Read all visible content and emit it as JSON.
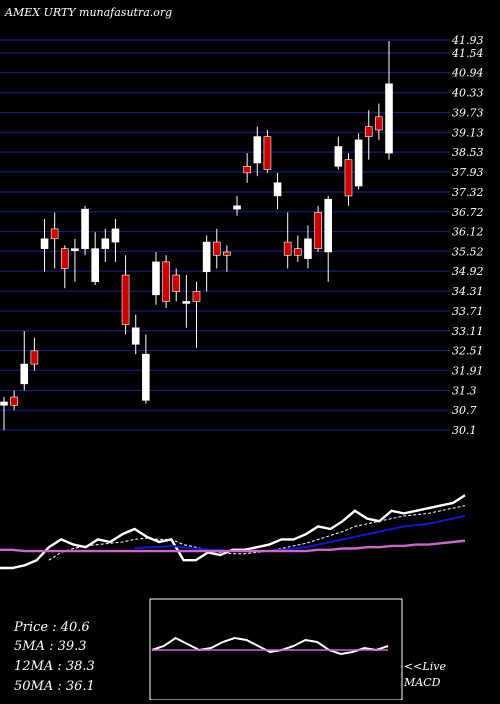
{
  "header": {
    "title": "AMEX  URTY munafasutra.org"
  },
  "colors": {
    "background": "#000000",
    "grid": "#1a1a7a",
    "up": "#ffffff",
    "down": "#cc0000",
    "price_line": "#ffffff",
    "ma5": "#ffffff",
    "ma12": "#1515d0",
    "ma50": "#cc66cc",
    "macd_box": "#ffffff",
    "macd_signal": "#cc66cc"
  },
  "stats": {
    "price": "Price   : 40.6",
    "ma5": "5MA : 39.3",
    "ma12": "12MA : 38.3",
    "ma50": "50MA : 36.1"
  },
  "macd_label": {
    "line1": "<<Live",
    "line2": "MACD"
  },
  "chart_data": [
    {
      "type": "candlestick",
      "title": "AMEX  URTY munafasutra.org",
      "ylim": [
        30.1,
        41.93
      ],
      "y_ticks": [
        "41.93",
        "41.54",
        "40.94",
        "40.33",
        "39.73",
        "39.13",
        "38.53",
        "37.93",
        "37.32",
        "36.72",
        "36.12",
        "35.52",
        "34.92",
        "34.31",
        "33.71",
        "33.11",
        "32.51",
        "31.91",
        "31.3",
        "30.7",
        "30.1"
      ],
      "y_tick_values": [
        41.93,
        41.54,
        40.94,
        40.33,
        39.73,
        39.13,
        38.53,
        37.93,
        37.32,
        36.72,
        36.12,
        35.52,
        34.92,
        34.31,
        33.71,
        33.11,
        32.51,
        31.91,
        31.3,
        30.7,
        30.1
      ],
      "grid": true,
      "candles": [
        {
          "o": 30.95,
          "h": 31.1,
          "l": 30.1,
          "c": 30.85,
          "dir": "up"
        },
        {
          "o": 31.1,
          "h": 31.3,
          "l": 30.7,
          "c": 30.85,
          "dir": "down"
        },
        {
          "o": 31.5,
          "h": 33.1,
          "l": 31.3,
          "c": 32.1,
          "dir": "up"
        },
        {
          "o": 32.5,
          "h": 32.9,
          "l": 31.9,
          "c": 32.1,
          "dir": "down"
        },
        {
          "o": 35.9,
          "h": 36.5,
          "l": 34.9,
          "c": 35.6,
          "dir": "up"
        },
        {
          "o": 36.2,
          "h": 36.7,
          "l": 35.0,
          "c": 35.9,
          "dir": "down"
        },
        {
          "o": 35.6,
          "h": 35.7,
          "l": 34.4,
          "c": 35.0,
          "dir": "down"
        },
        {
          "o": 35.6,
          "h": 35.9,
          "l": 34.6,
          "c": 35.6,
          "dir": "up"
        },
        {
          "o": 36.8,
          "h": 36.9,
          "l": 35.4,
          "c": 35.6,
          "dir": "up"
        },
        {
          "o": 35.6,
          "h": 36.1,
          "l": 34.5,
          "c": 34.6,
          "dir": "up"
        },
        {
          "o": 35.9,
          "h": 36.2,
          "l": 35.2,
          "c": 35.6,
          "dir": "up"
        },
        {
          "o": 36.2,
          "h": 36.5,
          "l": 35.2,
          "c": 35.8,
          "dir": "up"
        },
        {
          "o": 34.8,
          "h": 35.4,
          "l": 33.0,
          "c": 33.3,
          "dir": "down"
        },
        {
          "o": 33.2,
          "h": 33.6,
          "l": 32.4,
          "c": 32.7,
          "dir": "up"
        },
        {
          "o": 32.4,
          "h": 33.0,
          "l": 30.9,
          "c": 31.0,
          "dir": "up"
        },
        {
          "o": 35.2,
          "h": 35.5,
          "l": 33.9,
          "c": 34.2,
          "dir": "up"
        },
        {
          "o": 35.2,
          "h": 35.4,
          "l": 33.8,
          "c": 34.0,
          "dir": "down"
        },
        {
          "o": 34.8,
          "h": 35.0,
          "l": 34.0,
          "c": 34.3,
          "dir": "down"
        },
        {
          "o": 34.0,
          "h": 34.8,
          "l": 33.2,
          "c": 34.0,
          "dir": "up"
        },
        {
          "o": 34.3,
          "h": 34.6,
          "l": 32.6,
          "c": 34.0,
          "dir": "down"
        },
        {
          "o": 35.8,
          "h": 36.0,
          "l": 34.3,
          "c": 34.9,
          "dir": "up"
        },
        {
          "o": 35.8,
          "h": 36.2,
          "l": 35.0,
          "c": 35.4,
          "dir": "down"
        },
        {
          "o": 35.5,
          "h": 35.7,
          "l": 34.9,
          "c": 35.4,
          "dir": "down"
        },
        {
          "o": 36.9,
          "h": 37.2,
          "l": 36.6,
          "c": 36.8,
          "dir": "up"
        },
        {
          "o": 38.1,
          "h": 38.5,
          "l": 37.6,
          "c": 37.9,
          "dir": "down"
        },
        {
          "o": 39.0,
          "h": 39.3,
          "l": 37.8,
          "c": 38.2,
          "dir": "up"
        },
        {
          "o": 38.0,
          "h": 39.2,
          "l": 37.9,
          "c": 39.0,
          "dir": "down"
        },
        {
          "o": 37.6,
          "h": 37.9,
          "l": 36.8,
          "c": 37.2,
          "dir": "up"
        },
        {
          "o": 35.8,
          "h": 36.7,
          "l": 35.0,
          "c": 35.4,
          "dir": "down"
        },
        {
          "o": 35.6,
          "h": 36.0,
          "l": 35.2,
          "c": 35.4,
          "dir": "down"
        },
        {
          "o": 35.9,
          "h": 36.3,
          "l": 35.0,
          "c": 35.3,
          "dir": "up"
        },
        {
          "o": 35.6,
          "h": 36.9,
          "l": 35.5,
          "c": 36.7,
          "dir": "down"
        },
        {
          "o": 37.1,
          "h": 37.2,
          "l": 34.6,
          "c": 35.5,
          "dir": "up"
        },
        {
          "o": 38.7,
          "h": 39.0,
          "l": 38.0,
          "c": 38.1,
          "dir": "up"
        },
        {
          "o": 37.2,
          "h": 38.5,
          "l": 36.9,
          "c": 38.3,
          "dir": "down"
        },
        {
          "o": 37.5,
          "h": 39.1,
          "l": 37.4,
          "c": 38.9,
          "dir": "up"
        },
        {
          "o": 39.0,
          "h": 39.8,
          "l": 38.3,
          "c": 39.3,
          "dir": "down"
        },
        {
          "o": 39.2,
          "h": 40.0,
          "l": 38.9,
          "c": 39.6,
          "dir": "down"
        },
        {
          "o": 40.6,
          "h": 41.9,
          "l": 38.3,
          "c": 38.5,
          "dir": "up"
        }
      ]
    },
    {
      "type": "line",
      "series": [
        {
          "name": "Price",
          "values": [
            40,
            40,
            42,
            46,
            56,
            62,
            58,
            56,
            62,
            60,
            66,
            70,
            64,
            60,
            62,
            46,
            46,
            52,
            50,
            54,
            54,
            56,
            58,
            62,
            62,
            66,
            72,
            70,
            76,
            84,
            78,
            76,
            84,
            82,
            84,
            86,
            88,
            90,
            96
          ]
        },
        {
          "name": "5MA",
          "values": [
            null,
            null,
            null,
            null,
            46,
            52,
            55,
            57,
            58,
            59,
            60,
            62,
            63,
            62,
            62,
            58,
            56,
            54,
            52,
            51,
            51,
            52,
            53,
            55,
            57,
            59,
            62,
            65,
            68,
            72,
            74,
            76,
            78,
            80,
            81,
            82,
            84,
            86,
            88
          ]
        },
        {
          "name": "12MA",
          "values": [
            null,
            null,
            null,
            null,
            null,
            null,
            null,
            null,
            null,
            null,
            null,
            55,
            56,
            56,
            57,
            56,
            55,
            54,
            54,
            53,
            53,
            53,
            53,
            54,
            55,
            56,
            58,
            60,
            62,
            64,
            66,
            68,
            70,
            72,
            73,
            74,
            76,
            78,
            80
          ]
        },
        {
          "name": "50MA",
          "values": [
            54,
            54,
            53,
            53,
            53,
            53,
            53,
            53,
            53,
            53,
            53,
            53,
            53,
            53,
            53,
            53,
            53,
            53,
            53,
            53,
            53,
            53,
            53,
            53,
            53,
            53,
            54,
            54,
            55,
            55,
            56,
            56,
            57,
            57,
            58,
            58,
            59,
            60,
            61
          ]
        }
      ]
    },
    {
      "type": "line",
      "series": [
        {
          "name": "MACD",
          "values": [
            1.0,
            1.2,
            1.6,
            1.3,
            1.0,
            1.1,
            1.4,
            1.6,
            1.5,
            1.2,
            0.9,
            1.0,
            1.2,
            1.5,
            1.4,
            1.0,
            0.8,
            0.9,
            1.1,
            1.0,
            1.2
          ]
        },
        {
          "name": "Signal",
          "values": [
            1.0,
            1.0,
            1.0,
            1.0,
            1.0,
            1.0,
            1.0,
            1.0,
            1.0,
            1.0,
            1.0,
            1.0,
            1.0,
            1.0,
            1.0,
            1.0,
            1.0,
            1.0,
            1.0,
            1.0,
            1.0
          ]
        }
      ]
    }
  ]
}
